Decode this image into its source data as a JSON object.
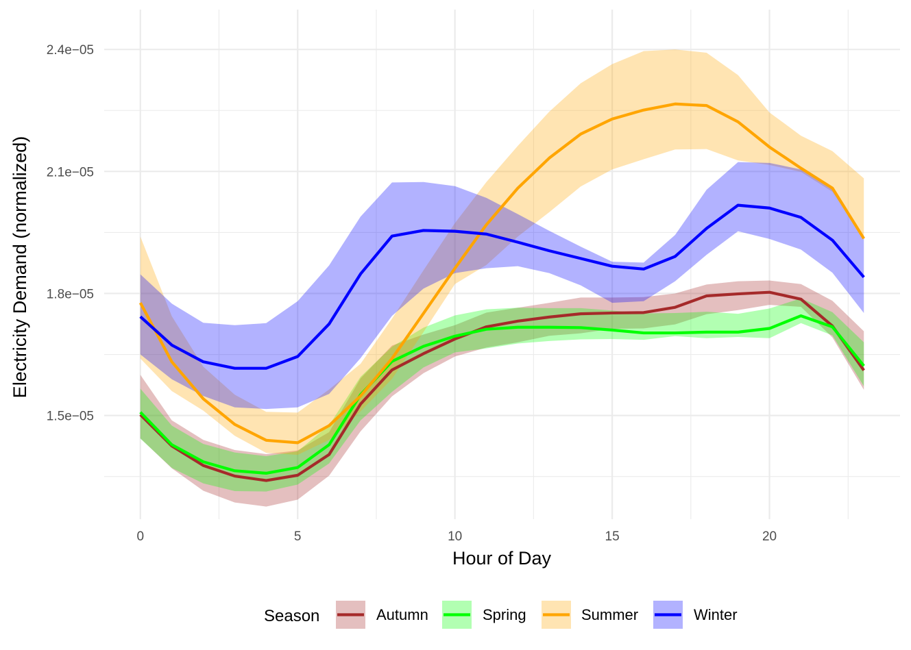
{
  "chart_data": {
    "type": "line",
    "xlabel": "Hour of Day",
    "ylabel": "Electricity Demand (normalized)",
    "xlim": [
      -1.15,
      24.15
    ],
    "ylim": [
      1.245e-05,
      2.498e-05
    ],
    "x_ticks": [
      0,
      5,
      10,
      15,
      20
    ],
    "x_tick_labels": [
      "0",
      "5",
      "10",
      "15",
      "20"
    ],
    "y_ticks": [
      1.5e-05,
      1.8e-05,
      2.1e-05,
      2.4e-05
    ],
    "y_tick_labels": [
      "1.5e−05",
      "1.8e−05",
      "2.1e−05",
      "2.4e−05"
    ],
    "grid": true,
    "legend": {
      "title": "Season",
      "position": "bottom"
    },
    "x": [
      0,
      1,
      2,
      3,
      4,
      5,
      6,
      7,
      8,
      9,
      10,
      11,
      12,
      13,
      14,
      15,
      16,
      17,
      18,
      19,
      20,
      21,
      22,
      23
    ],
    "series": [
      {
        "name": "Autumn",
        "color": "#a52a2a",
        "values": [
          1.502e-05,
          1.425e-05,
          1.377e-05,
          1.351e-05,
          1.34e-05,
          1.353e-05,
          1.404e-05,
          1.528e-05,
          1.612e-05,
          1.652e-05,
          1.688e-05,
          1.718e-05,
          1.732e-05,
          1.742e-05,
          1.75e-05,
          1.752e-05,
          1.753e-05,
          1.766e-05,
          1.794e-05,
          1.799e-05,
          1.803e-05,
          1.786e-05,
          1.72e-05,
          1.611e-05
        ],
        "lower": [
          1.444e-05,
          1.37e-05,
          1.315e-05,
          1.286e-05,
          1.276e-05,
          1.293e-05,
          1.352e-05,
          1.461e-05,
          1.547e-05,
          1.604e-05,
          1.645e-05,
          1.667e-05,
          1.68e-05,
          1.696e-05,
          1.702e-05,
          1.713e-05,
          1.714e-05,
          1.724e-05,
          1.749e-05,
          1.759e-05,
          1.772e-05,
          1.767e-05,
          1.692e-05,
          1.563e-05
        ],
        "upper": [
          1.6e-05,
          1.488e-05,
          1.44e-05,
          1.415e-05,
          1.405e-05,
          1.414e-05,
          1.459e-05,
          1.591e-05,
          1.672e-05,
          1.699e-05,
          1.722e-05,
          1.753e-05,
          1.765e-05,
          1.777e-05,
          1.79e-05,
          1.79e-05,
          1.791e-05,
          1.8e-05,
          1.822e-05,
          1.83e-05,
          1.832e-05,
          1.823e-05,
          1.782e-05,
          1.707e-05
        ]
      },
      {
        "name": "Spring",
        "color": "#00ff00",
        "values": [
          1.508e-05,
          1.428e-05,
          1.386e-05,
          1.364e-05,
          1.358e-05,
          1.372e-05,
          1.428e-05,
          1.551e-05,
          1.633e-05,
          1.67e-05,
          1.695e-05,
          1.712e-05,
          1.717e-05,
          1.717e-05,
          1.716e-05,
          1.71e-05,
          1.703e-05,
          1.703e-05,
          1.705e-05,
          1.705e-05,
          1.714e-05,
          1.745e-05,
          1.718e-05,
          1.622e-05
        ],
        "lower": [
          1.443e-05,
          1.371e-05,
          1.333e-05,
          1.314e-05,
          1.313e-05,
          1.33e-05,
          1.382e-05,
          1.488e-05,
          1.558e-05,
          1.618e-05,
          1.655e-05,
          1.665e-05,
          1.677e-05,
          1.683e-05,
          1.687e-05,
          1.688e-05,
          1.686e-05,
          1.695e-05,
          1.69e-05,
          1.693e-05,
          1.69e-05,
          1.727e-05,
          1.697e-05,
          1.572e-05
        ],
        "upper": [
          1.566e-05,
          1.475e-05,
          1.43e-05,
          1.409e-05,
          1.4e-05,
          1.412e-05,
          1.476e-05,
          1.595e-05,
          1.669e-05,
          1.716e-05,
          1.746e-05,
          1.761e-05,
          1.765e-05,
          1.764e-05,
          1.764e-05,
          1.758e-05,
          1.751e-05,
          1.752e-05,
          1.755e-05,
          1.75e-05,
          1.763e-05,
          1.788e-05,
          1.754e-05,
          1.68e-05
        ]
      },
      {
        "name": "Summer",
        "color": "#ffa500",
        "values": [
          1.777e-05,
          1.632e-05,
          1.541e-05,
          1.478e-05,
          1.439e-05,
          1.433e-05,
          1.475e-05,
          1.548e-05,
          1.64e-05,
          1.751e-05,
          1.862e-05,
          1.969e-05,
          2.059e-05,
          2.133e-05,
          2.192e-05,
          2.229e-05,
          2.251e-05,
          2.266e-05,
          2.262e-05,
          2.222e-05,
          2.16e-05,
          2.108e-05,
          2.059e-05,
          1.935e-05
        ],
        "lower": [
          1.64e-05,
          1.56e-05,
          1.512e-05,
          1.45e-05,
          1.408e-05,
          1.403e-05,
          1.44e-05,
          1.51e-05,
          1.59e-05,
          1.705e-05,
          1.823e-05,
          1.87e-05,
          1.94e-05,
          2e-05,
          2.063e-05,
          2.105e-05,
          2.13e-05,
          2.154e-05,
          2.155e-05,
          2.127e-05,
          2.116e-05,
          2.099e-05,
          2.05e-05,
          1.935e-05
        ],
        "upper": [
          1.94e-05,
          1.744e-05,
          1.62e-05,
          1.551e-05,
          1.509e-05,
          1.507e-05,
          1.564e-05,
          1.627e-05,
          1.738e-05,
          1.857e-05,
          1.973e-05,
          2.074e-05,
          2.163e-05,
          2.247e-05,
          2.317e-05,
          2.364e-05,
          2.396e-05,
          2.4e-05,
          2.392e-05,
          2.337e-05,
          2.245e-05,
          2.188e-05,
          2.15e-05,
          2.083e-05
        ]
      },
      {
        "name": "Winter",
        "color": "#0000ff",
        "values": [
          1.743e-05,
          1.673e-05,
          1.632e-05,
          1.616e-05,
          1.616e-05,
          1.645e-05,
          1.725e-05,
          1.848e-05,
          1.941e-05,
          1.955e-05,
          1.953e-05,
          1.946e-05,
          1.926e-05,
          1.905e-05,
          1.886e-05,
          1.867e-05,
          1.86e-05,
          1.891e-05,
          1.96e-05,
          2.017e-05,
          2.01e-05,
          1.987e-05,
          1.931e-05,
          1.84e-05
        ],
        "lower": [
          1.65e-05,
          1.589e-05,
          1.548e-05,
          1.52e-05,
          1.516e-05,
          1.52e-05,
          1.553e-05,
          1.641e-05,
          1.745e-05,
          1.812e-05,
          1.85e-05,
          1.862e-05,
          1.867e-05,
          1.85e-05,
          1.82e-05,
          1.777e-05,
          1.781e-05,
          1.83e-05,
          1.895e-05,
          1.953e-05,
          1.934e-05,
          1.908e-05,
          1.851e-05,
          1.752e-05
        ],
        "upper": [
          1.847e-05,
          1.775e-05,
          1.728e-05,
          1.722e-05,
          1.727e-05,
          1.781e-05,
          1.869e-05,
          1.989e-05,
          2.073e-05,
          2.074e-05,
          2.064e-05,
          2.035e-05,
          1.995e-05,
          1.954e-05,
          1.915e-05,
          1.878e-05,
          1.876e-05,
          1.944e-05,
          2.055e-05,
          2.123e-05,
          2.121e-05,
          2.105e-05,
          2.061e-05,
          1.94e-05
        ]
      }
    ]
  }
}
